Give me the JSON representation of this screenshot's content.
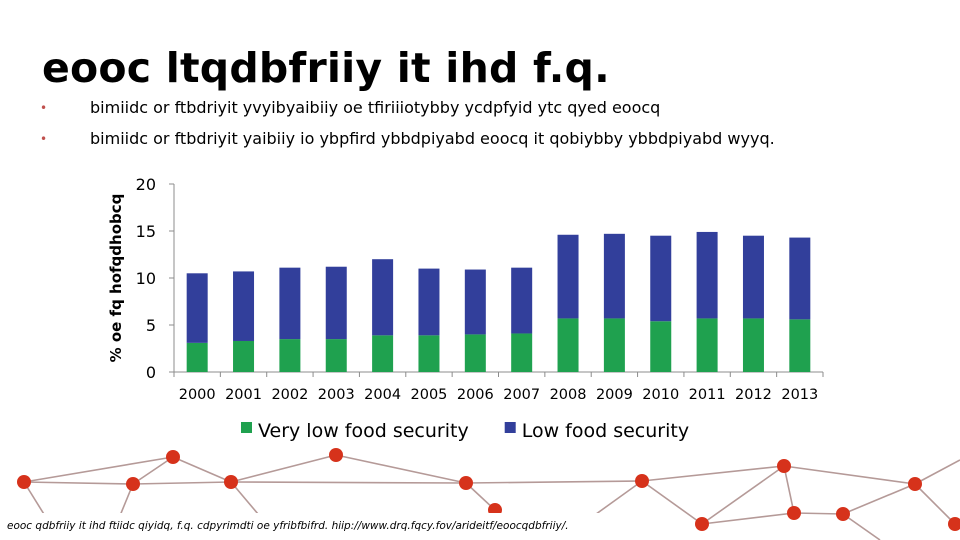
{
  "slide": {
    "title": "eooc ltqdbfriiy it ihd f.q.",
    "bullets": [
      "bimiidc or ftbdriyit yvyibyaibiiy oe tfiriiiotybby ycdpfyid ytc qyed eoocq",
      "bimiidc or ftbdriyit yaibiiy io ybpfird ybbdpiyabd eoocq it qobiybby ybbdpiyabd wyyq."
    ],
    "source": "eooc qdbfriiy it ihd ftiidc qiyidq, f.q. cdpyrimdti oe yfribfbifrd. hiip://www.drq.fqcy.fov/arideitf/eoocqdbfriiy/."
  },
  "colors": {
    "very_low": "#1fa14f",
    "low": "#323f9b",
    "bullet": "#c0504d",
    "network_node": "#d6321b",
    "network_line": "#b59a98"
  },
  "chart_data": {
    "type": "bar",
    "stacked": true,
    "categories": [
      "2000",
      "2001",
      "2002",
      "2003",
      "2004",
      "2005",
      "2006",
      "2007",
      "2008",
      "2009",
      "2010",
      "2011",
      "2012",
      "2013"
    ],
    "series": [
      {
        "name": "Very low food security",
        "values": [
          3.1,
          3.3,
          3.5,
          3.5,
          3.9,
          3.9,
          4.0,
          4.1,
          5.7,
          5.7,
          5.4,
          5.7,
          5.7,
          5.6
        ]
      },
      {
        "name": "Low food security",
        "values": [
          7.4,
          7.4,
          7.6,
          7.7,
          8.1,
          7.1,
          6.9,
          7.0,
          8.9,
          9.0,
          9.1,
          9.2,
          8.8,
          8.7
        ]
      }
    ],
    "ylabel": "% oe fq hofqdhobcq",
    "xlabel": "",
    "ylim": [
      0,
      20
    ],
    "yticks": [
      0,
      5,
      10,
      15,
      20
    ],
    "legend": "bottom",
    "grid": false
  }
}
